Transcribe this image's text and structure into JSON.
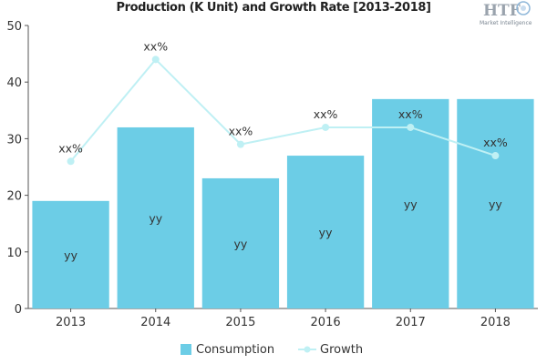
{
  "chart_data": {
    "type": "bar",
    "title": "Production (K Unit) and Growth Rate [2013-2018]",
    "categories": [
      "2013",
      "2014",
      "2015",
      "2016",
      "2017",
      "2018"
    ],
    "ylim": [
      0,
      50
    ],
    "yticks": [
      0,
      10,
      20,
      30,
      40,
      50
    ],
    "grid": false,
    "legend_position": "bottom",
    "series": [
      {
        "name": "Consumption",
        "type": "bar",
        "color": "#6ccde6",
        "values": [
          19,
          32,
          23,
          27,
          37,
          37
        ],
        "data_labels": [
          "yy",
          "yy",
          "yy",
          "yy",
          "yy",
          "yy"
        ]
      },
      {
        "name": "Growth",
        "type": "line",
        "color": "#bff0f4",
        "values": [
          26,
          44,
          29,
          32,
          32,
          27
        ],
        "data_labels": [
          "xx%",
          "xx%",
          "xx%",
          "xx%",
          "xx%",
          "xx%"
        ]
      }
    ]
  },
  "logo": {
    "mark": "HTF",
    "subtitle": "Market Intelligence"
  }
}
